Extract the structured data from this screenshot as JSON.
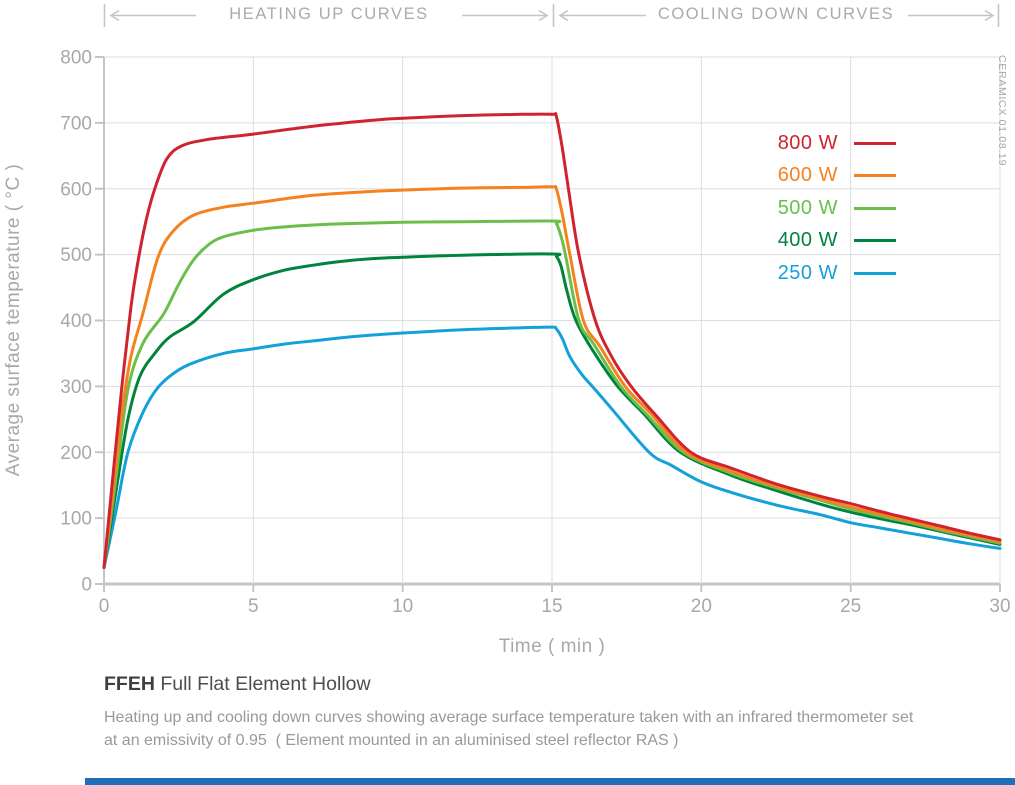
{
  "header": {
    "heating_label": "HEATING UP CURVES",
    "cooling_label": "COOLING DOWN CURVES"
  },
  "watermark": "CERAMICX 01.08.19",
  "footer": {
    "title_bold": "FFEH",
    "title_rest": " Full Flat Element Hollow",
    "description_line1": "Heating up and cooling down curves showing average surface temperature taken with an infrared thermometer set",
    "description_line2": "at an emissivity of 0.95  ( Element mounted in an aluminised steel reflector RAS )"
  },
  "colors": {
    "grid": "#dcddde",
    "axis": "#c3c5c7",
    "tick_text": "#a6a8ab",
    "accent_bar": "#1d70b7"
  },
  "chart_data": {
    "type": "line",
    "title": "",
    "xlabel": "Time ( min )",
    "ylabel": "Average surface temperature ( °C )",
    "xlim": [
      0,
      30
    ],
    "ylim": [
      0,
      800
    ],
    "xticks": [
      0,
      5,
      10,
      15,
      20,
      25,
      30
    ],
    "yticks": [
      0,
      100,
      200,
      300,
      400,
      500,
      600,
      700,
      800
    ],
    "grid": true,
    "legend_position": "upper right",
    "sections": {
      "heating_minutes": [
        0,
        15
      ],
      "cooling_minutes": [
        15,
        30
      ]
    },
    "series": [
      {
        "name": "800 W",
        "color": "#cf2430",
        "points": [
          [
            0,
            25
          ],
          [
            0.3,
            165
          ],
          [
            0.6,
            300
          ],
          [
            0.9,
            420
          ],
          [
            1.1,
            480
          ],
          [
            1.4,
            550
          ],
          [
            1.7,
            600
          ],
          [
            2.1,
            645
          ],
          [
            2.6,
            665
          ],
          [
            3.5,
            675
          ],
          [
            5,
            683
          ],
          [
            7,
            695
          ],
          [
            9,
            704
          ],
          [
            10,
            707
          ],
          [
            12,
            711
          ],
          [
            14,
            713
          ],
          [
            15,
            713
          ],
          [
            15.15,
            709
          ],
          [
            15.35,
            660
          ],
          [
            15.55,
            600
          ],
          [
            15.9,
            500
          ],
          [
            16.45,
            400
          ],
          [
            17,
            345
          ],
          [
            17.65,
            300
          ],
          [
            18.5,
            255
          ],
          [
            19.65,
            200
          ],
          [
            21,
            176
          ],
          [
            22.5,
            152
          ],
          [
            24,
            133
          ],
          [
            25,
            122
          ],
          [
            26,
            110
          ],
          [
            27,
            99
          ],
          [
            28,
            88
          ],
          [
            29,
            77
          ],
          [
            30,
            67
          ]
        ]
      },
      {
        "name": "600 W",
        "color": "#f5821f",
        "points": [
          [
            0,
            25
          ],
          [
            0.3,
            140
          ],
          [
            0.6,
            260
          ],
          [
            0.9,
            345
          ],
          [
            1.3,
            410
          ],
          [
            1.8,
            495
          ],
          [
            2.3,
            535
          ],
          [
            3,
            560
          ],
          [
            4,
            572
          ],
          [
            5,
            578
          ],
          [
            7,
            590
          ],
          [
            9,
            596
          ],
          [
            10,
            598
          ],
          [
            12,
            601
          ],
          [
            14,
            602
          ],
          [
            15,
            603
          ],
          [
            15.15,
            599
          ],
          [
            15.35,
            560
          ],
          [
            15.6,
            500
          ],
          [
            16.05,
            400
          ],
          [
            16.6,
            361
          ],
          [
            17.45,
            300
          ],
          [
            18.3,
            259
          ],
          [
            19.5,
            200
          ],
          [
            21,
            171
          ],
          [
            22.5,
            148
          ],
          [
            24,
            129
          ],
          [
            25,
            117
          ],
          [
            26,
            106
          ],
          [
            27,
            95
          ],
          [
            28,
            84
          ],
          [
            29,
            74
          ],
          [
            30,
            64
          ]
        ]
      },
      {
        "name": "500 W",
        "color": "#6abf4a",
        "points": [
          [
            0,
            25
          ],
          [
            0.4,
            160
          ],
          [
            0.8,
            295
          ],
          [
            1.3,
            365
          ],
          [
            2,
            410
          ],
          [
            2.5,
            455
          ],
          [
            3,
            492
          ],
          [
            3.5,
            515
          ],
          [
            4,
            527
          ],
          [
            5,
            537
          ],
          [
            6,
            542
          ],
          [
            7,
            545
          ],
          [
            8,
            547
          ],
          [
            10,
            549
          ],
          [
            12,
            550
          ],
          [
            15,
            551
          ],
          [
            15.15,
            547
          ],
          [
            15.3,
            528
          ],
          [
            15.45,
            500
          ],
          [
            15.9,
            400
          ],
          [
            16.4,
            364
          ],
          [
            17.3,
            300
          ],
          [
            18.2,
            256
          ],
          [
            19.4,
            200
          ],
          [
            21,
            168
          ],
          [
            22.5,
            146
          ],
          [
            24,
            127
          ],
          [
            25,
            114
          ],
          [
            26,
            103
          ],
          [
            27,
            93
          ],
          [
            28,
            82
          ],
          [
            29,
            72
          ],
          [
            30,
            62
          ]
        ]
      },
      {
        "name": "400 W",
        "color": "#00843d",
        "points": [
          [
            0,
            25
          ],
          [
            0.4,
            140
          ],
          [
            0.8,
            250
          ],
          [
            1.2,
            315
          ],
          [
            1.7,
            350
          ],
          [
            2.2,
            375
          ],
          [
            3,
            398
          ],
          [
            4,
            440
          ],
          [
            5,
            462
          ],
          [
            6,
            476
          ],
          [
            7,
            484
          ],
          [
            8,
            490
          ],
          [
            9,
            494
          ],
          [
            10,
            496
          ],
          [
            12,
            499
          ],
          [
            15,
            501
          ],
          [
            15.15,
            497
          ],
          [
            15.3,
            483
          ],
          [
            15.5,
            445
          ],
          [
            15.8,
            400
          ],
          [
            16.4,
            352
          ],
          [
            17.2,
            300
          ],
          [
            18.1,
            257
          ],
          [
            19.3,
            200
          ],
          [
            21,
            165
          ],
          [
            22.5,
            142
          ],
          [
            24,
            121
          ],
          [
            25,
            109
          ],
          [
            26,
            99
          ],
          [
            27,
            90
          ],
          [
            28,
            80
          ],
          [
            29,
            70
          ],
          [
            30,
            60
          ]
        ]
      },
      {
        "name": "250 W",
        "color": "#14a0da",
        "points": [
          [
            0,
            25
          ],
          [
            0.4,
            110
          ],
          [
            0.8,
            200
          ],
          [
            1.3,
            260
          ],
          [
            1.8,
            298
          ],
          [
            2.4,
            322
          ],
          [
            3,
            336
          ],
          [
            4,
            350
          ],
          [
            5,
            357
          ],
          [
            6,
            364
          ],
          [
            7,
            369
          ],
          [
            8,
            374
          ],
          [
            9,
            378
          ],
          [
            10,
            381
          ],
          [
            12,
            386
          ],
          [
            14,
            389
          ],
          [
            15,
            390
          ],
          [
            15.15,
            387
          ],
          [
            15.35,
            372
          ],
          [
            15.6,
            345
          ],
          [
            16,
            318
          ],
          [
            16.35,
            300
          ],
          [
            17,
            266
          ],
          [
            18.25,
            200
          ],
          [
            19,
            180
          ],
          [
            20,
            155
          ],
          [
            21,
            139
          ],
          [
            22.5,
            120
          ],
          [
            24,
            105
          ],
          [
            25,
            93
          ],
          [
            26,
            85
          ],
          [
            27,
            77
          ],
          [
            28,
            69
          ],
          [
            29,
            61
          ],
          [
            30,
            54
          ]
        ]
      }
    ]
  }
}
